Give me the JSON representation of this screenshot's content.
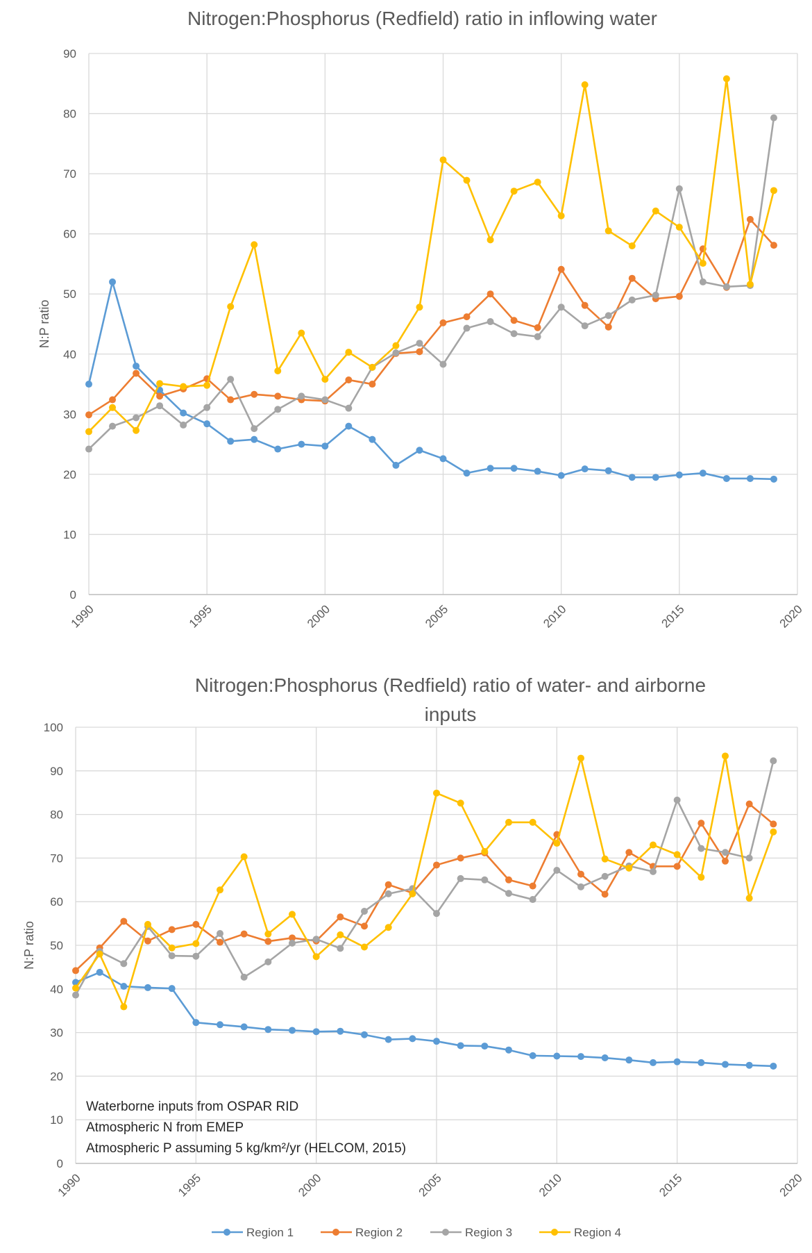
{
  "colors": {
    "Region 1": "#5B9BD5",
    "Region 2": "#ED7D31",
    "Region 3": "#A5A5A5",
    "Region 4": "#FFC000"
  },
  "legend": [
    "Region 1",
    "Region 2",
    "Region 3",
    "Region 4"
  ],
  "chart_data": [
    {
      "type": "line",
      "title": "Nitrogen:Phosphorus (Redfield) ratio in inflowing water",
      "xlabel": "",
      "ylabel": "N:P ratio",
      "xlim": [
        1990,
        2020
      ],
      "ylim": [
        0,
        90
      ],
      "xticks": [
        1990,
        1995,
        2000,
        2005,
        2010,
        2015,
        2020
      ],
      "yticks": [
        0,
        10,
        20,
        30,
        40,
        50,
        60,
        70,
        80,
        90
      ],
      "grid": true,
      "x": [
        1990,
        1991,
        1992,
        1993,
        1994,
        1995,
        1996,
        1997,
        1998,
        1999,
        2000,
        2001,
        2002,
        2003,
        2004,
        2005,
        2006,
        2007,
        2008,
        2009,
        2010,
        2011,
        2012,
        2013,
        2014,
        2015,
        2016,
        2017,
        2018,
        2019
      ],
      "series": [
        {
          "name": "Region 1",
          "values": [
            35,
            52,
            38,
            34,
            30.2,
            28.4,
            25.5,
            25.8,
            24.2,
            25,
            24.7,
            28,
            25.8,
            21.5,
            24,
            22.6,
            20.2,
            21,
            21,
            20.5,
            19.8,
            20.9,
            20.6,
            19.5,
            19.5,
            19.9,
            20.2,
            19.3,
            19.3,
            19.2
          ]
        },
        {
          "name": "Region 2",
          "values": [
            29.9,
            32.4,
            36.8,
            33,
            34.2,
            35.9,
            32.4,
            33.3,
            33,
            32.4,
            32.2,
            35.7,
            35,
            40.1,
            40.4,
            45.2,
            46.2,
            50,
            45.6,
            44.4,
            54.1,
            48.1,
            44.5,
            52.6,
            49.2,
            49.6,
            57.5,
            51.1,
            62.4,
            58.1
          ]
        },
        {
          "name": "Region 3",
          "values": [
            24.2,
            28,
            29.4,
            31.4,
            28.2,
            31.1,
            35.8,
            27.6,
            30.8,
            33,
            32.4,
            31,
            37.8,
            40.2,
            41.8,
            38.3,
            44.3,
            45.4,
            43.4,
            42.9,
            47.8,
            44.7,
            46.4,
            49,
            49.8,
            67.5,
            52,
            51.2,
            51.4,
            79.3
          ]
        },
        {
          "name": "Region 4",
          "values": [
            27.1,
            31.1,
            27.3,
            35.1,
            34.6,
            34.8,
            47.9,
            58.2,
            37.2,
            43.5,
            35.8,
            40.3,
            37.8,
            41.4,
            47.8,
            72.3,
            68.9,
            59,
            67.1,
            68.6,
            63,
            84.8,
            60.5,
            58,
            63.8,
            61.1,
            55.1,
            85.8,
            51.6,
            67.2
          ]
        }
      ]
    },
    {
      "type": "line",
      "title": [
        "Nitrogen:Phosphorus (Redfield) ratio of water- and airborne",
        "inputs"
      ],
      "xlabel": "",
      "ylabel": "N:P ratio",
      "xlim": [
        1990,
        2020
      ],
      "ylim": [
        0,
        100
      ],
      "xticks": [
        1990,
        1995,
        2000,
        2005,
        2010,
        2015,
        2020
      ],
      "yticks": [
        0,
        10,
        20,
        30,
        40,
        50,
        60,
        70,
        80,
        90,
        100
      ],
      "grid": true,
      "legend_position": "bottom",
      "annotations": [
        "Waterborne inputs from OSPAR RID",
        "Atmospheric N from EMEP",
        "Atmospheric P assuming 5 kg/km²/yr (HELCOM, 2015)"
      ],
      "x": [
        1990,
        1991,
        1992,
        1993,
        1994,
        1995,
        1996,
        1997,
        1998,
        1999,
        2000,
        2001,
        2002,
        2003,
        2004,
        2005,
        2006,
        2007,
        2008,
        2009,
        2010,
        2011,
        2012,
        2013,
        2014,
        2015,
        2016,
        2017,
        2018,
        2019
      ],
      "series": [
        {
          "name": "Region 1",
          "values": [
            41.5,
            43.8,
            40.6,
            40.3,
            40.1,
            32.3,
            31.8,
            31.3,
            30.7,
            30.5,
            30.2,
            30.3,
            29.5,
            28.4,
            28.6,
            28,
            27,
            26.9,
            26,
            24.7,
            24.6,
            24.5,
            24.2,
            23.7,
            23.1,
            23.3,
            23.1,
            22.7,
            22.5,
            22.3
          ]
        },
        {
          "name": "Region 2",
          "values": [
            44.2,
            49.4,
            55.5,
            51,
            53.6,
            54.8,
            50.7,
            52.6,
            50.9,
            51.7,
            51,
            56.5,
            54.4,
            63.9,
            62,
            68.4,
            70,
            71.2,
            65,
            63.6,
            75.4,
            66.3,
            61.7,
            71.3,
            68.1,
            68.1,
            78,
            69.3,
            82.4,
            77.8
          ]
        },
        {
          "name": "Region 3",
          "values": [
            38.6,
            48.6,
            45.8,
            54.3,
            47.6,
            47.5,
            52.7,
            42.7,
            46.2,
            50.5,
            51.4,
            49.3,
            57.8,
            61.8,
            63,
            57.3,
            65.3,
            65,
            61.9,
            60.5,
            67.2,
            63.4,
            65.8,
            68.2,
            66.9,
            83.3,
            72.2,
            71.3,
            70,
            92.3
          ]
        },
        {
          "name": "Region 4",
          "values": [
            40.2,
            48,
            35.9,
            54.8,
            49.4,
            50.4,
            62.7,
            70.3,
            52.6,
            57.1,
            47.4,
            52.4,
            49.6,
            54.1,
            61.8,
            84.9,
            82.6,
            71.5,
            78.2,
            78.2,
            73.4,
            92.9,
            69.8,
            67.7,
            73,
            70.8,
            65.6,
            93.4,
            60.8,
            76
          ]
        }
      ]
    }
  ]
}
